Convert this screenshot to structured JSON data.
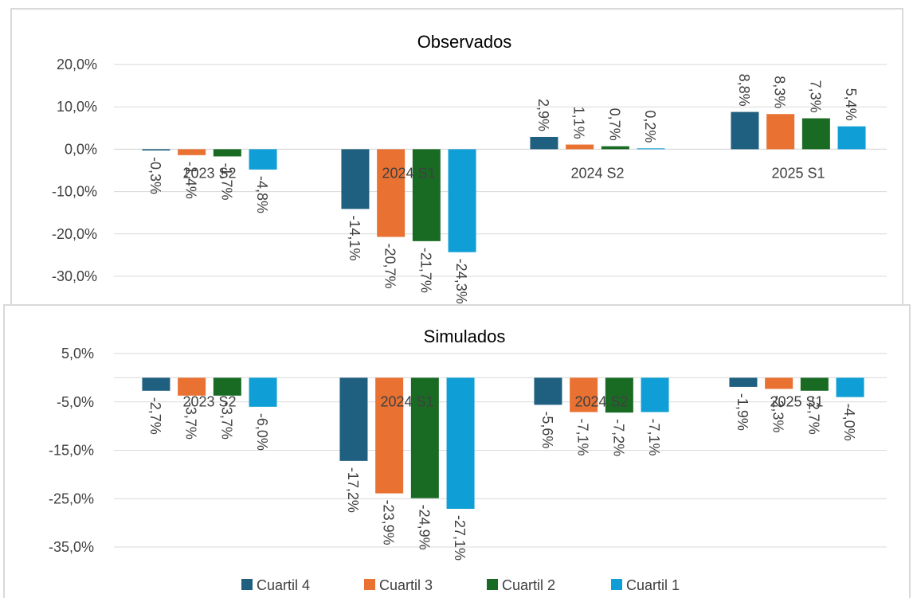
{
  "chart_data": [
    {
      "type": "bar",
      "title": "Observados",
      "categories": [
        "2023 S2",
        "2024 S1",
        "2024 S2",
        "2025 S1"
      ],
      "ylim": [
        -30,
        20
      ],
      "yticks": [
        20,
        10,
        0,
        -10,
        -20,
        -30
      ],
      "ytick_labels": [
        "20,0%",
        "10,0%",
        "0,0%",
        "-10,0%",
        "-20,0%",
        "-30,0%"
      ],
      "series": [
        {
          "name": "Cuartil 4",
          "color": "#1f5f7f",
          "values": [
            -0.3,
            -14.1,
            2.9,
            8.8
          ],
          "labels": [
            "-0,3%",
            "-14,1%",
            "2,9%",
            "8,8%"
          ]
        },
        {
          "name": "Cuartil 3",
          "color": "#e97132",
          "values": [
            -1.4,
            -20.7,
            1.1,
            8.3
          ],
          "labels": [
            "-1,4%",
            "-20,7%",
            "1,1%",
            "8,3%"
          ]
        },
        {
          "name": "Cuartil 2",
          "color": "#196b24",
          "values": [
            -1.7,
            -21.7,
            0.7,
            7.3
          ],
          "labels": [
            "-1,7%",
            "-21,7%",
            "0,7%",
            "7,3%"
          ]
        },
        {
          "name": "Cuartil 1",
          "color": "#0f9ed5",
          "values": [
            -4.8,
            -24.3,
            0.2,
            5.4
          ],
          "labels": [
            "-4,8%",
            "-24,3%",
            "0,2%",
            "5,4%"
          ]
        }
      ]
    },
    {
      "type": "bar",
      "title": "Simulados",
      "categories": [
        "2023 S2",
        "2024 S1",
        "2024 S2",
        "2025 S1"
      ],
      "ylim": [
        -35,
        5
      ],
      "yticks": [
        5,
        -5,
        -15,
        -25,
        -35
      ],
      "ytick_labels": [
        "5,0%",
        "-5,0%",
        "-15,0%",
        "-25,0%",
        "-35,0%"
      ],
      "series": [
        {
          "name": "Cuartil 4",
          "color": "#1f5f7f",
          "values": [
            -2.7,
            -17.2,
            -5.6,
            -1.9
          ],
          "labels": [
            "-2,7%",
            "-17,2%",
            "-5,6%",
            "-1,9%"
          ]
        },
        {
          "name": "Cuartil 3",
          "color": "#e97132",
          "values": [
            -3.7,
            -23.9,
            -7.1,
            -2.3
          ],
          "labels": [
            "-3,7%",
            "-23,9%",
            "-7,1%",
            "-2,3%"
          ]
        },
        {
          "name": "Cuartil 2",
          "color": "#196b24",
          "values": [
            -3.7,
            -24.9,
            -7.2,
            -2.7
          ],
          "labels": [
            "-3,7%",
            "-24,9%",
            "-7,2%",
            "-2,7%"
          ]
        },
        {
          "name": "Cuartil 1",
          "color": "#0f9ed5",
          "values": [
            -6.0,
            -27.1,
            -7.1,
            -4.0
          ],
          "labels": [
            "-6,0%",
            "-27,1%",
            "-7,1%",
            "-4,0%"
          ]
        }
      ],
      "legend": {
        "position": "bottom",
        "entries": [
          "Cuartil 4",
          "Cuartil 3",
          "Cuartil 2",
          "Cuartil 1"
        ]
      }
    }
  ]
}
